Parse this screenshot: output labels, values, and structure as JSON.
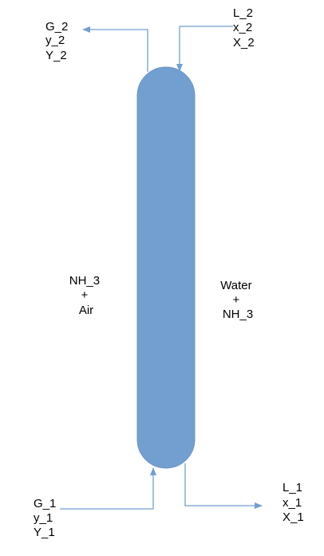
{
  "colors": {
    "column_fill": "#729fcf",
    "column_stroke": "#6a94c4",
    "stream_line": "#729fcf",
    "text": "#000000",
    "background": "#ffffff"
  },
  "streams": {
    "gas_out": {
      "lines": [
        "G_2",
        "y_2",
        "Y_2"
      ]
    },
    "liquid_in": {
      "lines": [
        "L_2",
        "x_2",
        "X_2"
      ]
    },
    "gas_in": {
      "lines": [
        "G_1",
        "y_1",
        "Y_1"
      ]
    },
    "liquid_out": {
      "lines": [
        "L_1",
        "x_1",
        "X_1"
      ]
    }
  },
  "phases": {
    "gas_phase": {
      "lines": [
        "NH_3",
        "+",
        "Air"
      ]
    },
    "liquid_phase": {
      "lines": [
        "Water",
        "+",
        "NH_3"
      ]
    }
  }
}
